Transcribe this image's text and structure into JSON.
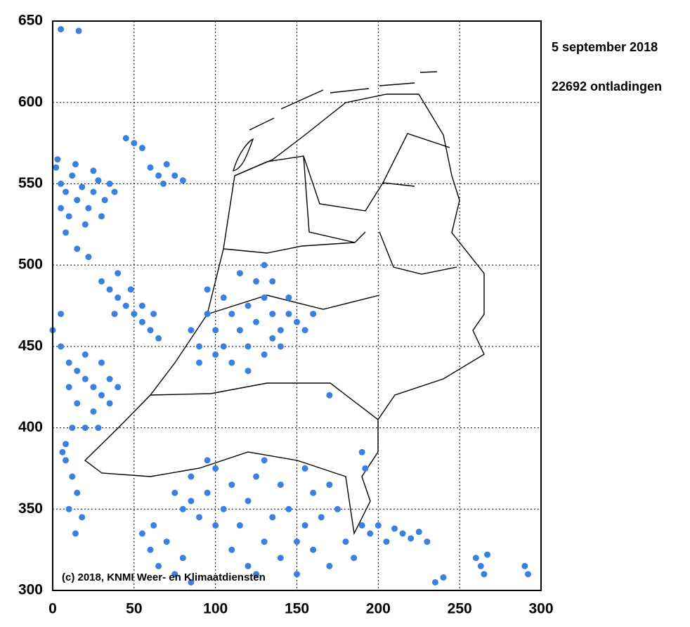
{
  "chart_data": {
    "type": "scatter",
    "title": "5 september 2018",
    "subtitle": "22692 ontladingen",
    "annotation": "(c) 2018, KNMI Weer- en Klimaatdiensten",
    "color": "#3a80e0",
    "grid": true,
    "xlim": [
      0,
      300
    ],
    "xticks": [
      0,
      50,
      100,
      150,
      200,
      250,
      300
    ],
    "ylim": [
      300,
      650
    ],
    "yticks": [
      300,
      350,
      400,
      450,
      500,
      550,
      600,
      650
    ],
    "x": [
      2,
      5,
      8,
      12,
      15,
      18,
      22,
      25,
      28,
      32,
      35,
      10,
      20,
      5,
      30,
      3,
      14,
      25,
      38,
      8,
      15,
      22,
      60,
      65,
      70,
      75,
      80,
      68,
      50,
      55,
      45,
      5,
      16,
      30,
      35,
      40,
      45,
      50,
      55,
      60,
      40,
      48,
      55,
      62,
      38,
      65,
      0,
      5,
      10,
      15,
      20,
      25,
      30,
      35,
      20,
      10,
      25,
      15,
      30,
      35,
      5,
      40,
      12,
      20,
      8,
      28,
      8,
      12,
      15,
      10,
      18,
      14,
      6,
      85,
      90,
      95,
      100,
      105,
      110,
      115,
      120,
      125,
      130,
      135,
      140,
      145,
      150,
      155,
      160,
      100,
      110,
      120,
      130,
      140,
      125,
      115,
      135,
      95,
      105,
      120,
      135,
      90,
      145,
      130,
      75,
      80,
      85,
      90,
      95,
      100,
      105,
      110,
      115,
      120,
      125,
      85,
      100,
      95,
      110,
      120,
      130,
      140,
      150,
      160,
      170,
      180,
      165,
      175,
      155,
      145,
      135,
      160,
      170,
      185,
      125,
      190,
      150,
      140,
      130,
      155,
      55,
      60,
      65,
      70,
      75,
      80,
      85,
      62,
      195,
      200,
      205,
      210,
      215,
      220,
      225,
      230,
      190,
      192,
      260,
      263,
      267,
      265,
      290,
      292,
      235,
      240,
      170
    ],
    "values": [
      560,
      550,
      545,
      555,
      540,
      548,
      535,
      545,
      552,
      540,
      550,
      530,
      525,
      535,
      530,
      565,
      562,
      558,
      545,
      520,
      510,
      505,
      560,
      555,
      562,
      555,
      552,
      550,
      575,
      572,
      578,
      645,
      644,
      490,
      485,
      480,
      475,
      470,
      465,
      460,
      495,
      485,
      475,
      470,
      470,
      455,
      460,
      450,
      440,
      435,
      430,
      425,
      420,
      430,
      445,
      425,
      410,
      415,
      440,
      415,
      470,
      425,
      400,
      400,
      390,
      400,
      380,
      370,
      360,
      350,
      345,
      335,
      385,
      460,
      450,
      470,
      460,
      480,
      470,
      460,
      475,
      465,
      480,
      470,
      460,
      470,
      465,
      460,
      470,
      445,
      440,
      435,
      445,
      450,
      490,
      495,
      490,
      485,
      450,
      450,
      455,
      440,
      480,
      500,
      360,
      350,
      370,
      345,
      360,
      375,
      350,
      365,
      340,
      355,
      370,
      355,
      340,
      380,
      325,
      315,
      330,
      320,
      310,
      325,
      315,
      330,
      345,
      350,
      340,
      350,
      345,
      360,
      365,
      320,
      310,
      340,
      330,
      365,
      380,
      375,
      335,
      325,
      315,
      330,
      310,
      320,
      305,
      340,
      335,
      340,
      330,
      338,
      335,
      332,
      336,
      330,
      385,
      375,
      320,
      315,
      322,
      310,
      315,
      310,
      305,
      308,
      420
    ]
  }
}
